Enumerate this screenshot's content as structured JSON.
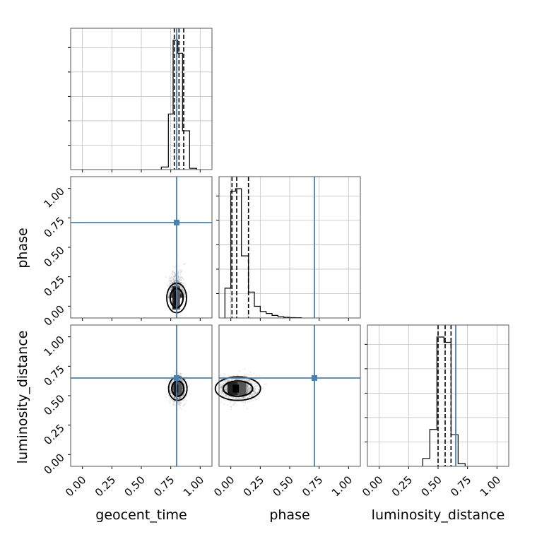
{
  "chart_data": {
    "type": "corner",
    "parameters": [
      "geocent_time",
      "phase",
      "luminosity_distance"
    ],
    "truths": {
      "geocent_time": 0.8,
      "phase": 0.71,
      "luminosity_distance": 0.65
    },
    "colors": {
      "truth": "#4682b4",
      "hist": "#000000",
      "grid": "#c0c0c0",
      "points": "#000000"
    },
    "axis_range": [
      -0.1,
      1.1
    ],
    "tick_values": [
      0.0,
      0.25,
      0.5,
      0.75,
      1.0
    ],
    "tick_labels": [
      "0.00",
      "0.25",
      "0.50",
      "0.75",
      "1.00"
    ],
    "grid": true,
    "panels": [
      {
        "row": 0,
        "col": 0,
        "kind": "hist",
        "param": "geocent_time",
        "bin_edges": [
          0.67,
          0.73,
          0.77,
          0.81,
          0.85,
          0.91,
          0.97
        ],
        "counts": [
          0.02,
          0.43,
          1.0,
          0.9,
          0.3,
          0.01
        ],
        "quantiles": [
          0.78,
          0.82,
          0.86
        ],
        "truth": 0.8
      },
      {
        "row": 1,
        "col": 0,
        "kind": "scatter2d",
        "x_param": "geocent_time",
        "y_param": "phase",
        "center": [
          0.8,
          0.07
        ],
        "spread": [
          0.03,
          0.09
        ],
        "truth": [
          0.8,
          0.71
        ]
      },
      {
        "row": 1,
        "col": 1,
        "kind": "hist",
        "param": "phase",
        "bin_edges": [
          -0.05,
          0.0,
          0.04,
          0.09,
          0.15,
          0.2,
          0.25,
          0.3,
          0.35,
          0.4,
          0.45,
          0.5,
          0.55,
          0.6
        ],
        "counts": [
          0.23,
          0.98,
          1.0,
          0.48,
          0.2,
          0.09,
          0.05,
          0.035,
          0.02,
          0.01,
          0.005,
          0.003,
          0.002
        ],
        "quantiles": [
          0.01,
          0.05,
          0.15
        ],
        "truth": 0.71
      },
      {
        "row": 2,
        "col": 0,
        "kind": "scatter2d",
        "x_param": "geocent_time",
        "y_param": "luminosity_distance",
        "center": [
          0.81,
          0.56
        ],
        "spread": [
          0.028,
          0.05
        ],
        "truth": [
          0.8,
          0.65
        ]
      },
      {
        "row": 2,
        "col": 1,
        "kind": "scatter2d",
        "x_param": "phase",
        "y_param": "luminosity_distance",
        "center": [
          0.06,
          0.56
        ],
        "spread": [
          0.08,
          0.05
        ],
        "truth": [
          0.71,
          0.65
        ]
      },
      {
        "row": 2,
        "col": 2,
        "kind": "hist",
        "param": "luminosity_distance",
        "bin_edges": [
          0.37,
          0.43,
          0.49,
          0.55,
          0.61,
          0.67,
          0.73
        ],
        "counts": [
          0.06,
          0.28,
          0.98,
          0.94,
          0.24,
          0.02
        ],
        "quantiles": [
          0.5,
          0.56,
          0.61
        ],
        "truth": 0.65
      }
    ]
  }
}
